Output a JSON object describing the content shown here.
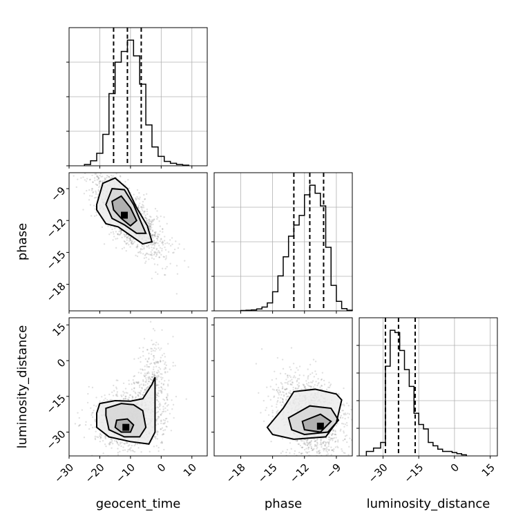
{
  "chart_data": [
    {
      "panel": "geocent_time-histogram",
      "type": "bar",
      "variable": "geocent_time",
      "xlim": [
        -30,
        15
      ],
      "bins_lo": [
        -25,
        -23,
        -21,
        -19,
        -17,
        -15,
        -13,
        -11,
        -9,
        -7,
        -5,
        -3,
        -1,
        1,
        3,
        5,
        7
      ],
      "bins_hi": [
        -23,
        -21,
        -19,
        -17,
        -15,
        -13,
        -11,
        -9,
        -7,
        -5,
        -3,
        -1,
        1,
        3,
        5,
        7,
        9
      ],
      "values": [
        0.2,
        0.8,
        2,
        5,
        11.5,
        16.5,
        18.2,
        20,
        17.5,
        13,
        6.5,
        3,
        1.5,
        0.7,
        0.4,
        0.2,
        0.1
      ],
      "quantiles": [
        -15.5,
        -11,
        -6.5
      ]
    },
    {
      "panel": "phase-histogram",
      "type": "bar",
      "variable": "phase",
      "xlim": [
        -20.5,
        -7.5
      ],
      "bins_lo": [
        -18,
        -17.5,
        -17,
        -16.5,
        -16,
        -15.5,
        -15,
        -14.5,
        -14,
        -13.5,
        -13,
        -12.5,
        -12,
        -11.5,
        -11,
        -10.5,
        -10,
        -9.5,
        -9,
        -8.5,
        -8
      ],
      "bins_hi": [
        -17.5,
        -17,
        -16.5,
        -16,
        -15.5,
        -15,
        -14.5,
        -14,
        -13.5,
        -13,
        -12.5,
        -12,
        -11.5,
        -11,
        -10.5,
        -10,
        -9.5,
        -9,
        -8.5,
        -8,
        -7.5
      ],
      "values": [
        0.1,
        0.2,
        0.3,
        0.6,
        1.2,
        2.5,
        6,
        11,
        17,
        23.5,
        27,
        30,
        36.5,
        39.5,
        37,
        33,
        20,
        8,
        3,
        0.7,
        0.2
      ],
      "quantiles": [
        -13,
        -11.5,
        -10.2
      ]
    },
    {
      "panel": "luminosity_distance-histogram",
      "type": "bar",
      "variable": "luminosity_distance",
      "xlim": [
        -40,
        18
      ],
      "bins_lo": [
        -37,
        -34,
        -31,
        -29,
        -27,
        -25,
        -23,
        -21,
        -19,
        -17,
        -15,
        -13,
        -11,
        -9,
        -7,
        -5,
        -3,
        -1,
        1,
        3
      ],
      "bins_hi": [
        -34,
        -31,
        -29,
        -27,
        -25,
        -23,
        -21,
        -19,
        -17,
        -15,
        -13,
        -11,
        -9,
        -7,
        -5,
        -3,
        -1,
        1,
        3,
        5
      ],
      "values": [
        0.4,
        0.7,
        1.2,
        8,
        11.2,
        11,
        9.4,
        7.7,
        6.2,
        3.8,
        2.8,
        2.4,
        1.2,
        0.9,
        0.6,
        0.4,
        0.4,
        0.3,
        0.2,
        0.1
      ],
      "quantiles": [
        -29,
        -23.5,
        -16.5
      ]
    },
    {
      "panel": "phase-vs-geocent_time",
      "type": "scatter",
      "x_variable": "geocent_time",
      "y_variable": "phase",
      "xlim": [
        -30,
        15
      ],
      "ylim": [
        -20.5,
        -7.5
      ],
      "mode": [
        -12,
        -11.5
      ],
      "contours": [
        [
          [
            -21,
            -10.5
          ],
          [
            -19,
            -8.5
          ],
          [
            -15,
            -8
          ],
          [
            -11,
            -9
          ],
          [
            -8,
            -10.8
          ],
          [
            -4.5,
            -12.5
          ],
          [
            -3,
            -14
          ],
          [
            -6,
            -14.2
          ],
          [
            -10,
            -13.4
          ],
          [
            -14,
            -12.6
          ],
          [
            -18,
            -12.3
          ],
          [
            -21,
            -11
          ]
        ],
        [
          [
            -18,
            -10.5
          ],
          [
            -16,
            -9
          ],
          [
            -12,
            -9.1
          ],
          [
            -9,
            -10.5
          ],
          [
            -6.5,
            -12.2
          ],
          [
            -5,
            -13.2
          ],
          [
            -8,
            -13.2
          ],
          [
            -12,
            -12.4
          ],
          [
            -16,
            -11.8
          ]
        ],
        [
          [
            -16,
            -10.2
          ],
          [
            -13,
            -9.7
          ],
          [
            -10,
            -10.8
          ],
          [
            -8,
            -12
          ],
          [
            -10,
            -12.5
          ],
          [
            -13,
            -11.8
          ],
          [
            -15.5,
            -11
          ]
        ]
      ]
    },
    {
      "panel": "luminosity_distance-vs-geocent_time",
      "type": "scatter",
      "x_variable": "geocent_time",
      "y_variable": "luminosity_distance",
      "xlim": [
        -30,
        15
      ],
      "ylim": [
        -40,
        18
      ],
      "mode": [
        -11.5,
        -28
      ],
      "contours": [
        [
          [
            -20,
            -18
          ],
          [
            -15,
            -16.8
          ],
          [
            -10,
            -17
          ],
          [
            -6,
            -16
          ],
          [
            -3,
            -10
          ],
          [
            -2,
            -7
          ],
          [
            -2,
            -30
          ],
          [
            -4,
            -35
          ],
          [
            -10,
            -34
          ],
          [
            -17,
            -32
          ],
          [
            -21,
            -28
          ],
          [
            -21,
            -22
          ]
        ],
        [
          [
            -18,
            -20
          ],
          [
            -13,
            -18
          ],
          [
            -9,
            -18.5
          ],
          [
            -6,
            -21
          ],
          [
            -5,
            -28
          ],
          [
            -7,
            -32
          ],
          [
            -12,
            -32
          ],
          [
            -17,
            -29
          ],
          [
            -18,
            -23
          ]
        ],
        [
          [
            -14.5,
            -25
          ],
          [
            -11,
            -24.5
          ],
          [
            -9,
            -27
          ],
          [
            -10,
            -30
          ],
          [
            -13,
            -30
          ],
          [
            -15,
            -28
          ]
        ]
      ]
    },
    {
      "panel": "luminosity_distance-vs-phase",
      "type": "scatter",
      "x_variable": "phase",
      "y_variable": "luminosity_distance",
      "xlim": [
        -20.5,
        -7.5
      ],
      "ylim": [
        -40,
        18
      ],
      "mode": [
        -10.5,
        -27.5
      ],
      "contours": [
        [
          [
            -15.5,
            -28
          ],
          [
            -14,
            -20
          ],
          [
            -13,
            -13
          ],
          [
            -11,
            -12
          ],
          [
            -9,
            -14
          ],
          [
            -8.5,
            -16.5
          ],
          [
            -9,
            -26
          ],
          [
            -10,
            -32
          ],
          [
            -13,
            -33
          ],
          [
            -15,
            -31
          ]
        ],
        [
          [
            -13.5,
            -24
          ],
          [
            -11.5,
            -19
          ],
          [
            -9.5,
            -20
          ],
          [
            -8.8,
            -25
          ],
          [
            -9.8,
            -30
          ],
          [
            -12,
            -31
          ],
          [
            -13.2,
            -29
          ]
        ],
        [
          [
            -12.2,
            -25.5
          ],
          [
            -10.5,
            -22.5
          ],
          [
            -9.5,
            -25.5
          ],
          [
            -10.5,
            -30
          ],
          [
            -12,
            -29
          ]
        ]
      ]
    }
  ],
  "axes": {
    "geocent_time": {
      "label": "geocent_time",
      "ticks": [
        -30,
        -20,
        -10,
        0,
        10
      ],
      "tick_labels": [
        "−30",
        "−20",
        "−10",
        "0",
        "10"
      ]
    },
    "phase": {
      "label": "phase",
      "ticks": [
        -18,
        -15,
        -12,
        -9
      ],
      "tick_labels": [
        "−18",
        "−15",
        "−12",
        "−9"
      ]
    },
    "luminosity_distance": {
      "label": "luminosity_distance",
      "ticks": [
        -30,
        -15,
        0,
        15
      ],
      "tick_labels": [
        "−30",
        "−15",
        "0",
        "15"
      ]
    }
  }
}
